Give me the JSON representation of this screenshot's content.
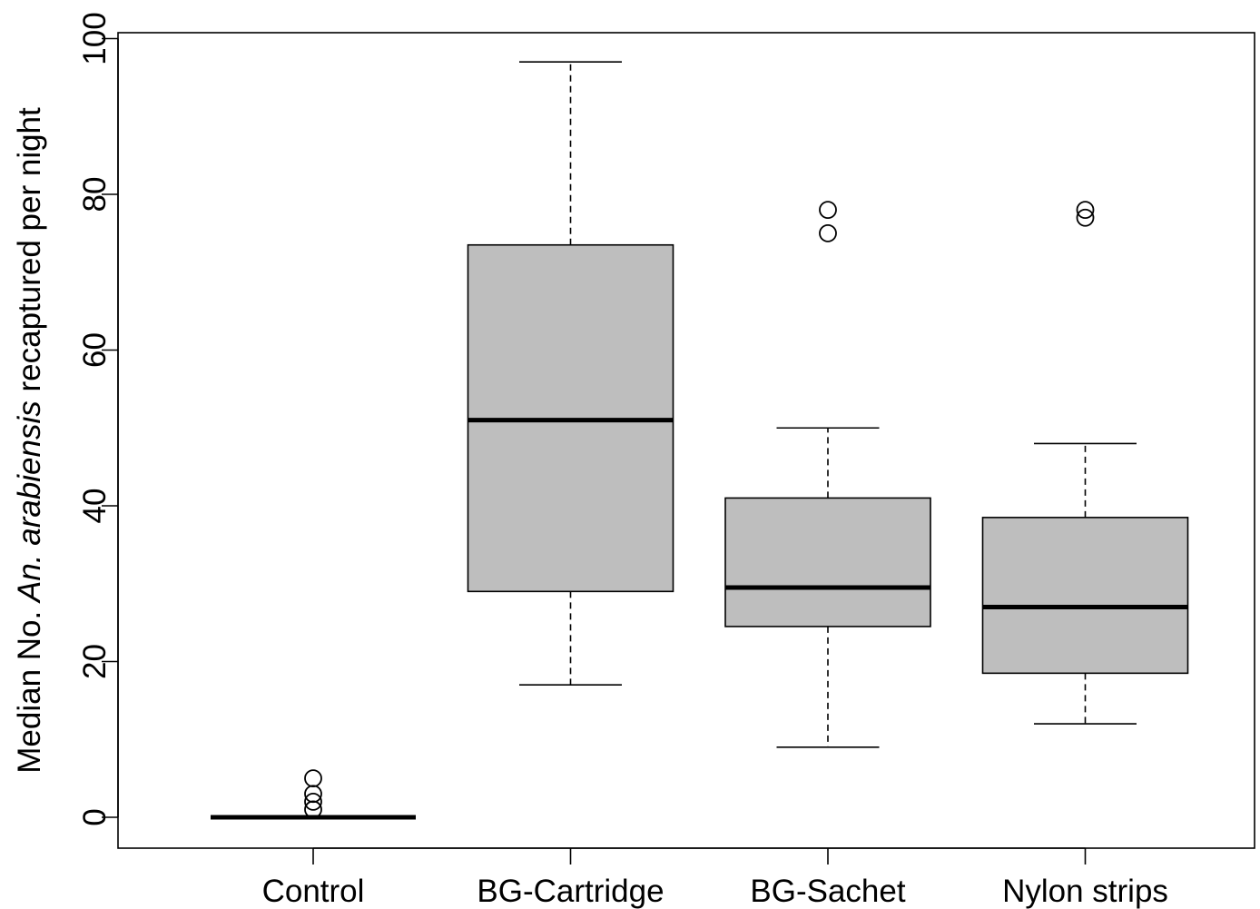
{
  "chart_data": {
    "type": "box",
    "categories": [
      "Control",
      "BG-Cartridge",
      "BG-Sachet",
      "Nylon strips"
    ],
    "ylabel": {
      "prefix": "Median No. ",
      "italic": "An. arabiensis",
      "suffix": " recaptured per night"
    },
    "ylim": [
      -4,
      100
    ],
    "yticks": [
      "0",
      "20",
      "40",
      "60",
      "80",
      "100"
    ],
    "grid": false,
    "box_fill": "#bebebe",
    "line_color": "#000000",
    "boxes": [
      {
        "name": "Control",
        "whisker_low": 0,
        "q1": 0,
        "median": 0,
        "q3": 0,
        "whisker_high": 0,
        "outliers": [
          1,
          2,
          3,
          5
        ]
      },
      {
        "name": "BG-Cartridge",
        "whisker_low": 17,
        "q1": 29,
        "median": 51,
        "q3": 73.5,
        "whisker_high": 97,
        "outliers": []
      },
      {
        "name": "BG-Sachet",
        "whisker_low": 9,
        "q1": 24.5,
        "median": 29.5,
        "q3": 41,
        "whisker_high": 50,
        "outliers": [
          75,
          78
        ]
      },
      {
        "name": "Nylon strips",
        "whisker_low": 12,
        "q1": 18.5,
        "median": 27,
        "q3": 38.5,
        "whisker_high": 48,
        "outliers": [
          77,
          78
        ]
      }
    ]
  }
}
